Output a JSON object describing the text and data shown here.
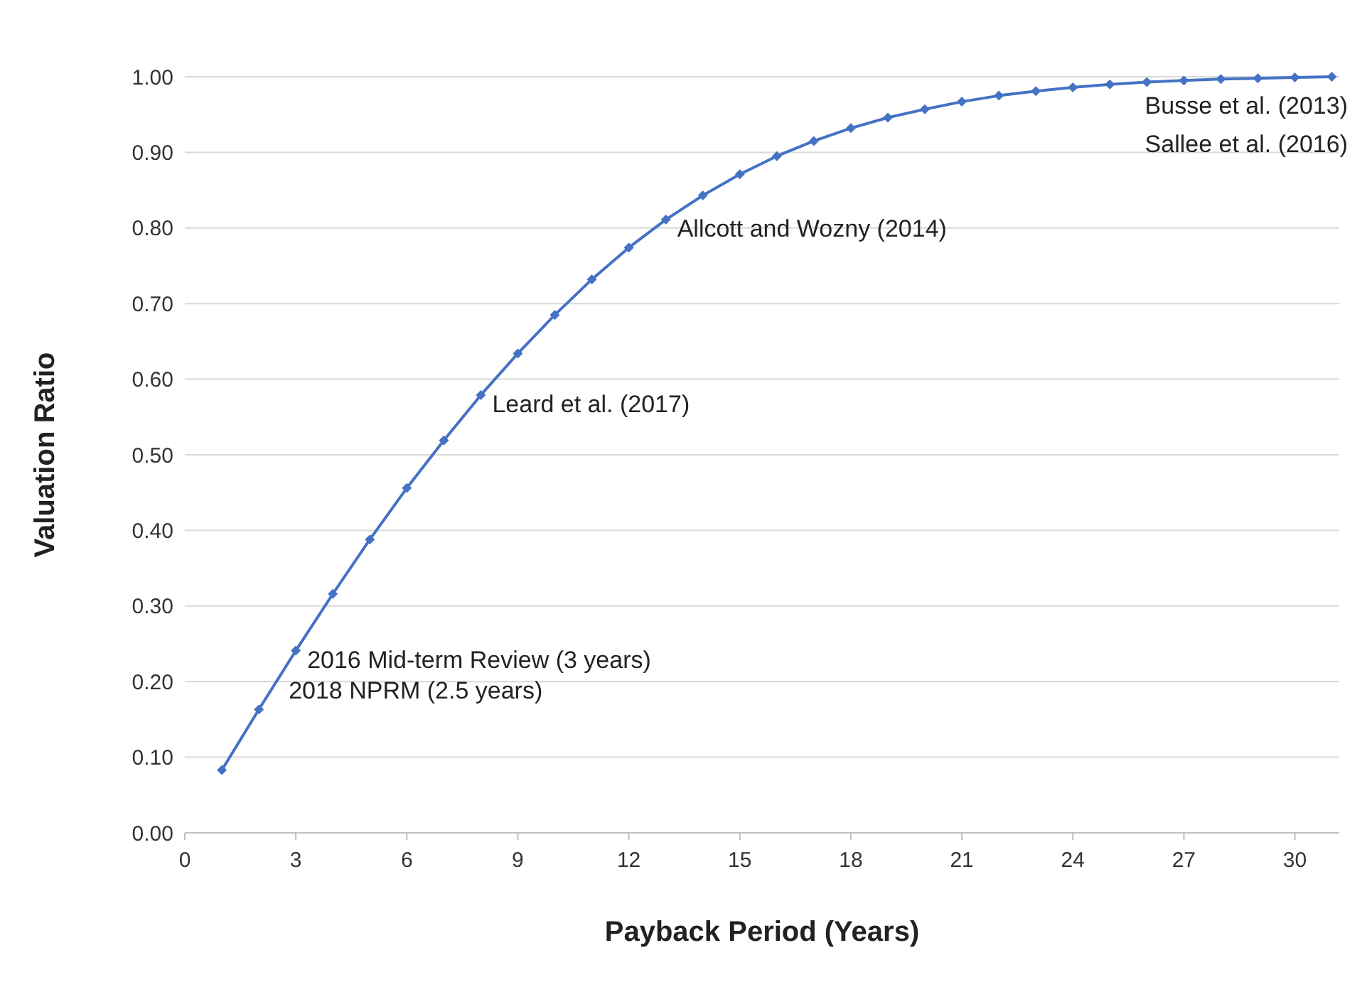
{
  "chart_data": {
    "type": "line",
    "xlabel": "Payback Period (Years)",
    "ylabel": "Valuation Ratio",
    "x": [
      1,
      2,
      3,
      4,
      5,
      6,
      7,
      8,
      9,
      10,
      11,
      12,
      13,
      14,
      15,
      16,
      17,
      18,
      19,
      20,
      21,
      22,
      23,
      24,
      25,
      26,
      27,
      28,
      29,
      30,
      31
    ],
    "series": [
      {
        "color": "#4472c4",
        "values": [
          0.083,
          0.163,
          0.241,
          0.316,
          0.388,
          0.456,
          0.519,
          0.579,
          0.634,
          0.685,
          0.732,
          0.774,
          0.811,
          0.843,
          0.871,
          0.895,
          0.915,
          0.932,
          0.946,
          0.957,
          0.967,
          0.975,
          0.981,
          0.986,
          0.99,
          0.993,
          0.995,
          0.997,
          0.998,
          0.999,
          1.0
        ]
      }
    ],
    "xlim": [
      0,
      31.2
    ],
    "xticks": [
      0,
      3,
      6,
      9,
      12,
      15,
      18,
      21,
      24,
      27,
      30
    ],
    "ylim": [
      0,
      1
    ],
    "yticks": [
      {
        "value": 0,
        "label": "0.00"
      },
      {
        "value": 0.1,
        "label": "0.10"
      },
      {
        "value": 0.2,
        "label": "0.20"
      },
      {
        "value": 0.3,
        "label": "0.30"
      },
      {
        "value": 0.4,
        "label": "0.40"
      },
      {
        "value": 0.5,
        "label": "0.50"
      },
      {
        "value": 0.6,
        "label": "0.60"
      },
      {
        "value": 0.7,
        "label": "0.70"
      },
      {
        "value": 0.8,
        "label": "0.80"
      },
      {
        "value": 0.9,
        "label": "0.90"
      },
      {
        "value": 1,
        "label": "1.00"
      }
    ],
    "grid": "y",
    "marker": "diamond",
    "line_style": "solid",
    "annotations": [
      {
        "text": "2018 NPRM (2.5 years)",
        "x": 2.5,
        "y": 0.2
      },
      {
        "text": "2016 Mid-term Review (3 years)",
        "x": 3,
        "y": 0.241
      },
      {
        "text": "Leard et al. (2017)",
        "x": 8,
        "y": 0.579
      },
      {
        "text": "Allcott and Wozny (2014)",
        "x": 13,
        "y": 0.811
      },
      {
        "text": "Busse et al. (2013)",
        "x": 31,
        "y": 1.0
      },
      {
        "text": "Sallee et al. (2016)",
        "x": 31,
        "y": 1.0
      }
    ]
  }
}
